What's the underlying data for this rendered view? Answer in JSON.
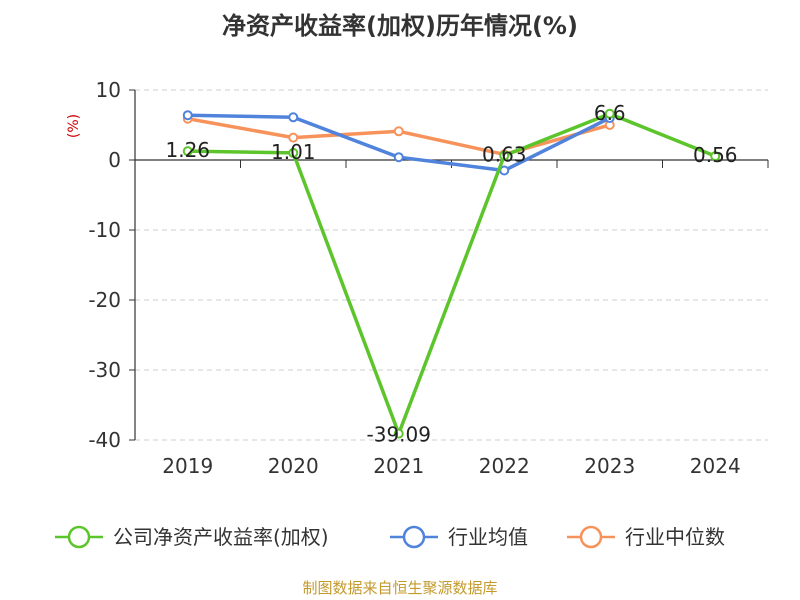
{
  "chart_data": {
    "type": "line",
    "title": "净资产收益率(加权)历年情况(%)",
    "ylabel": "(%)",
    "categories": [
      "2019",
      "2020",
      "2021",
      "2022",
      "2023",
      "2024"
    ],
    "ylim": [
      -40,
      10
    ],
    "yticks": [
      10,
      0,
      -10,
      -20,
      -30,
      -40
    ],
    "grid": true,
    "legend_position": "bottom",
    "series": [
      {
        "name": "公司净资产收益率(加权)",
        "color": "#5cc52b",
        "values": [
          1.26,
          1.01,
          -39.09,
          0.63,
          6.6,
          0.56
        ],
        "labels": [
          "1.26",
          "1.01",
          "-39.09",
          "0.63",
          "6.6",
          "0.56"
        ]
      },
      {
        "name": "行业均值",
        "color": "#4f83dc",
        "values": [
          6.4,
          6.1,
          0.4,
          -1.5,
          6.0,
          null
        ]
      },
      {
        "name": "行业中位数",
        "color": "#f7925a",
        "values": [
          5.9,
          3.2,
          4.1,
          0.8,
          5.0,
          null
        ]
      }
    ]
  },
  "source": "制图数据来自恒生聚源数据库"
}
